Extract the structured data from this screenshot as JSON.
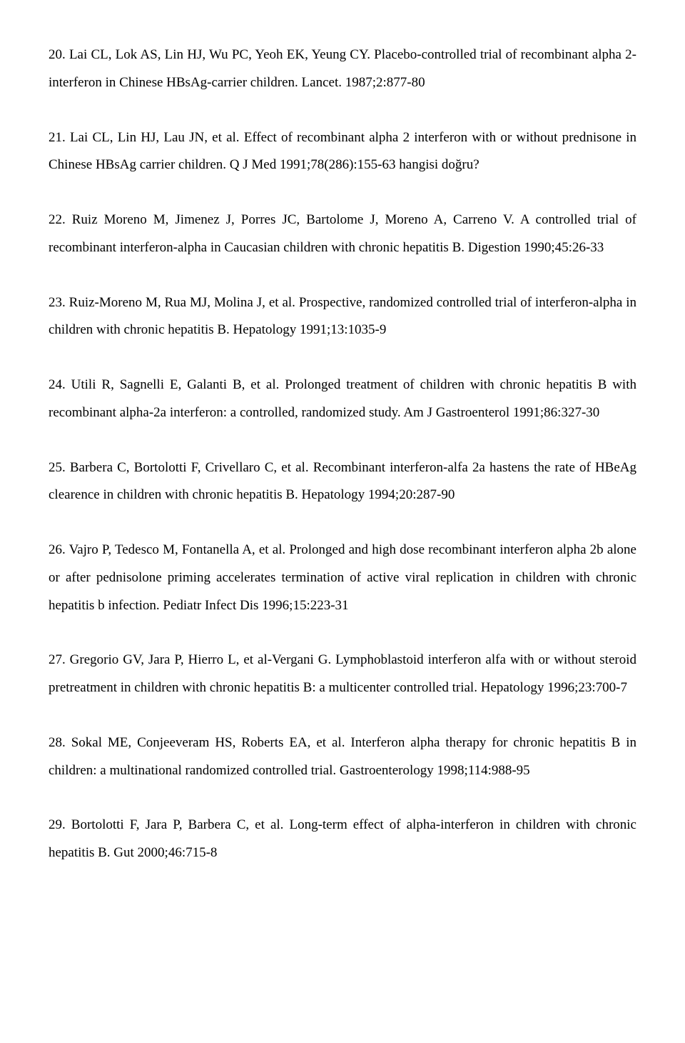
{
  "references": [
    {
      "text": "20. Lai CL, Lok AS, Lin HJ, Wu PC, Yeoh EK, Yeung CY. Placebo-controlled trial of recombinant alpha 2-interferon in Chinese HBsAg-carrier children. Lancet. 1987;2:877-80"
    },
    {
      "text": "21. Lai CL, Lin HJ, Lau JN, et al. Effect of recombinant alpha 2 interferon with or without prednisone in Chinese HBsAg carrier children. Q J Med 1991;78(286):155-63 hangisi doğru?"
    },
    {
      "text": "22. Ruiz Moreno M, Jimenez J, Porres JC, Bartolome J, Moreno A, Carreno V. A controlled trial of recombinant interferon-alpha in Caucasian children with chronic hepatitis B. Digestion 1990;45:26-33"
    },
    {
      "text": "23. Ruiz-Moreno M, Rua MJ, Molina J, et al. Prospective, randomized controlled trial of interferon-alpha in children with chronic hepatitis B. Hepatology 1991;13:1035-9"
    },
    {
      "text": "24. Utili R, Sagnelli E, Galanti B, et al. Prolonged treatment of children with chronic hepatitis B with recombinant alpha-2a interferon: a controlled, randomized study. Am J  Gastroenterol 1991;86:327-30"
    },
    {
      "text": "25. Barbera C, Bortolotti F, Crivellaro C, et al. Recombinant interferon-alfa 2a hastens the rate of HBeAg clearence in children with chronic hepatitis B. Hepatology 1994;20:287-90"
    },
    {
      "text": "26. Vajro P, Tedesco M, Fontanella A, et al. Prolonged and high dose recombinant interferon alpha 2b alone or after pednisolone priming accelerates termination of active viral replication in children with chronic hepatitis b infection. Pediatr Infect Dis 1996;15:223-31"
    },
    {
      "text": "27. Gregorio GV, Jara P, Hierro L, et al-Vergani G. Lymphoblastoid interferon alfa with or without steroid pretreatment in children with chronic hepatitis B: a multicenter controlled trial. Hepatology 1996;23:700-7"
    },
    {
      "text": "28. Sokal ME, Conjeeveram HS, Roberts EA, et al. Interferon alpha therapy for chronic hepatitis B in children: a multinational randomized controlled trial. Gastroenterology 1998;114:988-95"
    },
    {
      "text": "29. Bortolotti F, Jara P, Barbera C, et al. Long-term effect of alpha-interferon in children with chronic hepatitis B. Gut 2000;46:715-8"
    }
  ]
}
